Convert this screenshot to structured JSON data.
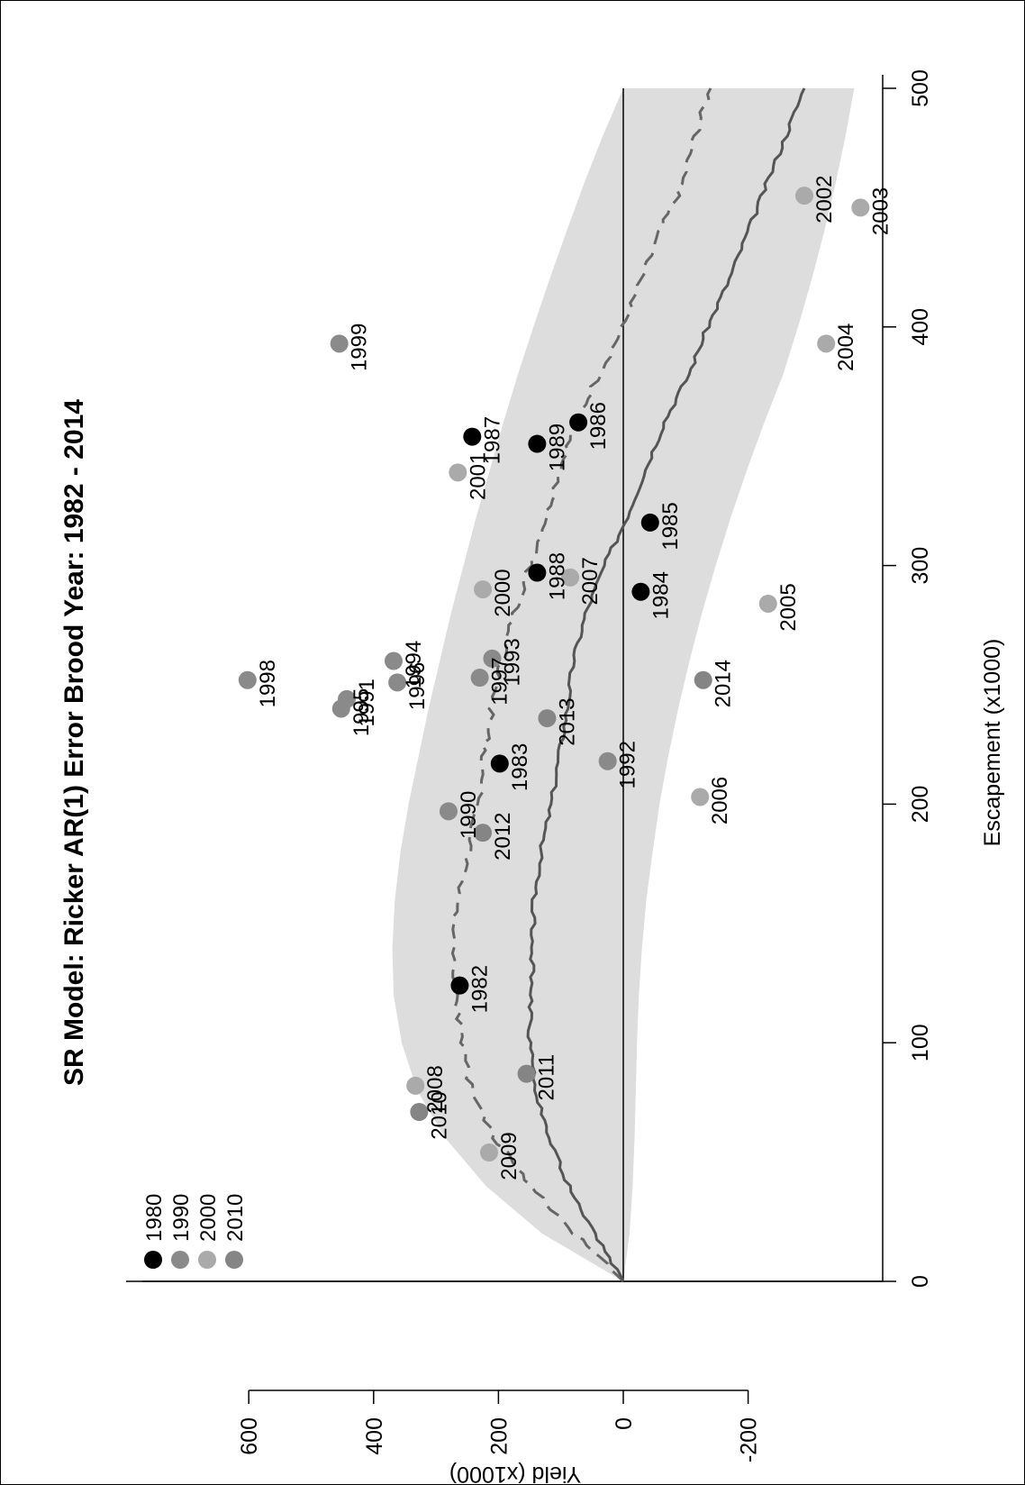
{
  "chart_data": {
    "type": "scatter",
    "title": "SR Model: Ricker AR(1) Error Brood Year: 1982 - 2014",
    "xlabel": "Escapement (x1000)",
    "ylabel": "Yield (x1000)",
    "xlim": [
      0,
      500
    ],
    "ylim": [
      -390,
      770
    ],
    "xticks": [
      0,
      100,
      200,
      300,
      400,
      500
    ],
    "yticks": [
      -200,
      0,
      200,
      400,
      600
    ],
    "orientation": "rotated 90° counter-clockwise",
    "legend": {
      "placement": "top-left",
      "entries": [
        {
          "label": "1980",
          "color": "#000000"
        },
        {
          "label": "1990",
          "color": "#8a8a8a"
        },
        {
          "label": "2000",
          "color": "#aaaaaa"
        },
        {
          "label": "2010",
          "color": "#858585"
        }
      ]
    },
    "colors": {
      "1980": "#000000",
      "1990": "#8a8a8a",
      "2000": "#aaaaaa",
      "2010": "#858585",
      "band": "#dddddd",
      "median": "#555555",
      "mean": "#666666"
    },
    "series": [
      {
        "type": "band",
        "x": [
          0,
          20,
          40,
          60,
          80,
          100,
          120,
          140,
          160,
          180,
          200,
          220,
          240,
          260,
          280,
          300,
          320,
          340,
          360,
          380,
          400,
          420,
          440,
          460,
          480,
          500
        ],
        "upper": [
          0,
          130,
          220,
          285,
          330,
          355,
          368,
          370,
          366,
          357,
          344,
          328,
          312,
          294,
          276,
          256,
          236,
          214,
          192,
          169,
          144,
          118,
          91,
          63,
          33,
          0
        ],
        "lower": [
          0,
          -10,
          -15,
          -18,
          -20,
          -22,
          -25,
          -30,
          -37,
          -47,
          -58,
          -72,
          -88,
          -106,
          -126,
          -148,
          -172,
          -198,
          -226,
          -256,
          -280,
          -302,
          -322,
          -340,
          -356,
          -370
        ]
      },
      {
        "type": "line",
        "style": "dashed",
        "x": [
          0,
          20,
          40,
          60,
          80,
          100,
          120,
          140,
          160,
          180,
          200,
          220,
          240,
          260,
          280,
          300,
          320,
          340,
          360,
          380,
          400,
          420,
          440,
          460,
          480,
          500
        ],
        "values": [
          0,
          78,
          150,
          205,
          243,
          258,
          268,
          275,
          265,
          248,
          232,
          225,
          210,
          195,
          175,
          150,
          125,
          103,
          75,
          40,
          0,
          -30,
          -60,
          -95,
          -115,
          -140
        ]
      },
      {
        "type": "line",
        "style": "solid",
        "x": [
          0,
          20,
          40,
          60,
          80,
          100,
          120,
          140,
          160,
          180,
          200,
          220,
          240,
          260,
          280,
          300,
          320,
          340,
          360,
          380,
          400,
          420,
          440,
          460,
          480,
          500
        ],
        "values": [
          0,
          45,
          88,
          118,
          142,
          150,
          148,
          145,
          143,
          132,
          115,
          103,
          90,
          80,
          60,
          30,
          -5,
          -35,
          -65,
          -105,
          -135,
          -170,
          -200,
          -230,
          -260,
          -290
        ]
      }
    ],
    "points": [
      {
        "year": "1982",
        "x": 124,
        "y": 262,
        "decade": "1980"
      },
      {
        "year": "1983",
        "x": 217,
        "y": 198,
        "decade": "1980"
      },
      {
        "year": "1984",
        "x": 289,
        "y": -28,
        "decade": "1980"
      },
      {
        "year": "1985",
        "x": 318,
        "y": -43,
        "decade": "1980"
      },
      {
        "year": "1986",
        "x": 360,
        "y": 72,
        "decade": "1980"
      },
      {
        "year": "1987",
        "x": 354,
        "y": 242,
        "decade": "1980"
      },
      {
        "year": "1988",
        "x": 297,
        "y": 138,
        "decade": "1980"
      },
      {
        "year": "1989",
        "x": 351,
        "y": 138,
        "decade": "1980"
      },
      {
        "year": "1990",
        "x": 197,
        "y": 280,
        "decade": "1990"
      },
      {
        "year": "1991",
        "x": 244,
        "y": 443,
        "decade": "1990"
      },
      {
        "year": "1992",
        "x": 218,
        "y": 25,
        "decade": "1990"
      },
      {
        "year": "1993",
        "x": 261,
        "y": 210,
        "decade": "1990"
      },
      {
        "year": "1994",
        "x": 260,
        "y": 368,
        "decade": "1990"
      },
      {
        "year": "1995",
        "x": 240,
        "y": 452,
        "decade": "1990"
      },
      {
        "year": "1996",
        "x": 251,
        "y": 362,
        "decade": "1990"
      },
      {
        "year": "1997",
        "x": 253,
        "y": 230,
        "decade": "1990"
      },
      {
        "year": "1998",
        "x": 252,
        "y": 602,
        "decade": "1990"
      },
      {
        "year": "1999",
        "x": 393,
        "y": 455,
        "decade": "1990"
      },
      {
        "year": "2000",
        "x": 290,
        "y": 225,
        "decade": "2000"
      },
      {
        "year": "2001",
        "x": 339,
        "y": 265,
        "decade": "2000"
      },
      {
        "year": "2002",
        "x": 455,
        "y": -290,
        "decade": "2000"
      },
      {
        "year": "2003",
        "x": 450,
        "y": -380,
        "decade": "2000"
      },
      {
        "year": "2004",
        "x": 393,
        "y": -325,
        "decade": "2000"
      },
      {
        "year": "2005",
        "x": 284,
        "y": -232,
        "decade": "2000"
      },
      {
        "year": "2006",
        "x": 203,
        "y": -123,
        "decade": "2000"
      },
      {
        "year": "2007",
        "x": 295,
        "y": 85,
        "decade": "2000"
      },
      {
        "year": "2008",
        "x": 82,
        "y": 333,
        "decade": "2000"
      },
      {
        "year": "2009",
        "x": 54,
        "y": 215,
        "decade": "2000"
      },
      {
        "year": "2010",
        "x": 71,
        "y": 327,
        "decade": "2010"
      },
      {
        "year": "2011",
        "x": 87,
        "y": 155,
        "decade": "2010"
      },
      {
        "year": "2012",
        "x": 188,
        "y": 225,
        "decade": "2010"
      },
      {
        "year": "2013",
        "x": 236,
        "y": 122,
        "decade": "2010"
      },
      {
        "year": "2014",
        "x": 252,
        "y": -128,
        "decade": "2010"
      }
    ]
  }
}
